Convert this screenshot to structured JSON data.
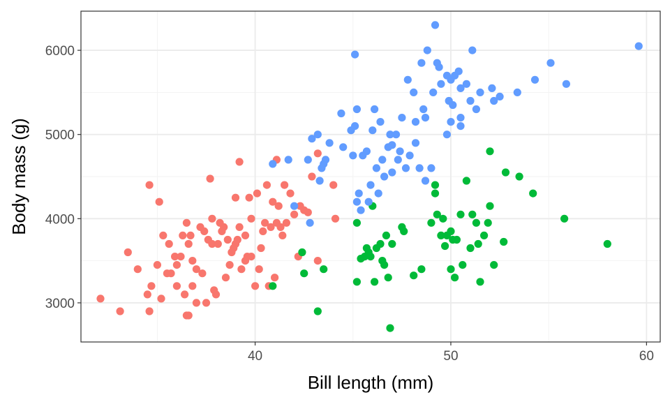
{
  "chart_data": {
    "type": "scatter",
    "xlabel": "Bill length (mm)",
    "ylabel": "Body mass (g)",
    "xlim": [
      31.1,
      60.7
    ],
    "ylim": [
      2535,
      6465
    ],
    "x_ticks": [
      40,
      50,
      60
    ],
    "x_minor_ticks": [
      35,
      45,
      55
    ],
    "y_ticks": [
      3000,
      4000,
      5000,
      6000
    ],
    "y_minor_ticks": [
      3500,
      4500,
      5500
    ],
    "grid": true,
    "legend": "none",
    "series": [
      {
        "color": "#F8766D",
        "points": [
          [
            32.1,
            3050
          ],
          [
            33.1,
            2900
          ],
          [
            33.5,
            3600
          ],
          [
            34.0,
            3400
          ],
          [
            34.5,
            3100
          ],
          [
            34.6,
            2900
          ],
          [
            34.6,
            4400
          ],
          [
            34.7,
            3200
          ],
          [
            35.0,
            3450
          ],
          [
            35.1,
            4200
          ],
          [
            35.2,
            3050
          ],
          [
            35.3,
            3800
          ],
          [
            35.5,
            3350
          ],
          [
            35.6,
            3700
          ],
          [
            35.7,
            3350
          ],
          [
            35.9,
            3550
          ],
          [
            36.0,
            3200
          ],
          [
            36.0,
            3450
          ],
          [
            36.2,
            3550
          ],
          [
            36.3,
            3800
          ],
          [
            36.4,
            3100
          ],
          [
            36.5,
            2850
          ],
          [
            36.6,
            3700
          ],
          [
            36.6,
            2850
          ],
          [
            36.7,
            3800
          ],
          [
            36.8,
            3500
          ],
          [
            37.0,
            3400
          ],
          [
            37.2,
            3900
          ],
          [
            37.3,
            3350
          ],
          [
            37.5,
            3000
          ],
          [
            37.6,
            3750
          ],
          [
            37.7,
            4475
          ],
          [
            37.8,
            3700
          ],
          [
            37.8,
            4000
          ],
          [
            37.9,
            3150
          ],
          [
            38.1,
            3700
          ],
          [
            38.2,
            3950
          ],
          [
            38.3,
            3850
          ],
          [
            38.5,
            3300
          ],
          [
            38.6,
            3750
          ],
          [
            38.7,
            3450
          ],
          [
            38.8,
            3600
          ],
          [
            38.9,
            3650
          ],
          [
            39.0,
            3700
          ],
          [
            39.0,
            4250
          ],
          [
            39.1,
            3750
          ],
          [
            39.2,
            4675
          ],
          [
            39.2,
            3900
          ],
          [
            39.3,
            3400
          ],
          [
            39.5,
            3800
          ],
          [
            39.6,
            3550
          ],
          [
            39.7,
            4250
          ],
          [
            39.8,
            4000
          ],
          [
            40.0,
            3200
          ],
          [
            40.2,
            3400
          ],
          [
            40.3,
            3650
          ],
          [
            40.5,
            3950
          ],
          [
            40.6,
            4400
          ],
          [
            40.8,
            3900
          ],
          [
            40.9,
            4200
          ],
          [
            41.0,
            3300
          ],
          [
            41.1,
            3950
          ],
          [
            41.1,
            4700
          ],
          [
            41.3,
            3900
          ],
          [
            41.4,
            3800
          ],
          [
            41.5,
            4400
          ],
          [
            41.6,
            3950
          ],
          [
            41.8,
            4300
          ],
          [
            42.0,
            4050
          ],
          [
            42.2,
            3550
          ],
          [
            42.3,
            4150
          ],
          [
            42.5,
            4100
          ],
          [
            42.7,
            4075
          ],
          [
            42.9,
            4500
          ],
          [
            43.2,
            4775
          ],
          [
            43.2,
            3500
          ],
          [
            44.1,
            4000
          ],
          [
            44.0,
            4400
          ],
          [
            36.5,
            3950
          ],
          [
            37.0,
            3000
          ],
          [
            38.0,
            3100
          ],
          [
            39.5,
            3500
          ],
          [
            40.1,
            4300
          ],
          [
            40.7,
            3200
          ],
          [
            36.8,
            3200
          ],
          [
            37.4,
            3850
          ],
          [
            38.4,
            3900
          ],
          [
            39.8,
            3550
          ],
          [
            40.4,
            3850
          ],
          [
            41.2,
            4150
          ]
        ]
      },
      {
        "color": "#00BA38",
        "points": [
          [
            40.9,
            3200
          ],
          [
            42.4,
            3600
          ],
          [
            42.5,
            3350
          ],
          [
            43.2,
            2900
          ],
          [
            43.5,
            3400
          ],
          [
            45.2,
            3250
          ],
          [
            45.2,
            3950
          ],
          [
            45.4,
            3525
          ],
          [
            45.6,
            3550
          ],
          [
            45.7,
            3650
          ],
          [
            45.9,
            3550
          ],
          [
            46.0,
            4150
          ],
          [
            46.1,
            3250
          ],
          [
            46.2,
            3650
          ],
          [
            46.4,
            3700
          ],
          [
            46.5,
            3500
          ],
          [
            46.6,
            3450
          ],
          [
            46.8,
            3300
          ],
          [
            46.9,
            2700
          ],
          [
            47.0,
            3700
          ],
          [
            47.5,
            3900
          ],
          [
            47.6,
            3850
          ],
          [
            48.1,
            3325
          ],
          [
            48.5,
            3400
          ],
          [
            49.0,
            3950
          ],
          [
            49.2,
            4400
          ],
          [
            49.3,
            4050
          ],
          [
            49.5,
            3800
          ],
          [
            49.7,
            3675
          ],
          [
            49.8,
            3800
          ],
          [
            50.0,
            3400
          ],
          [
            50.1,
            3750
          ],
          [
            50.2,
            3300
          ],
          [
            50.3,
            3750
          ],
          [
            50.5,
            4050
          ],
          [
            50.6,
            3450
          ],
          [
            50.8,
            4450
          ],
          [
            51.0,
            3650
          ],
          [
            51.3,
            3950
          ],
          [
            51.4,
            3700
          ],
          [
            51.5,
            3250
          ],
          [
            51.9,
            3950
          ],
          [
            52.0,
            4800
          ],
          [
            52.2,
            3450
          ],
          [
            52.7,
            3725
          ],
          [
            52.8,
            4550
          ],
          [
            53.5,
            4500
          ],
          [
            54.2,
            4300
          ],
          [
            55.8,
            4000
          ],
          [
            58.0,
            3700
          ],
          [
            45.8,
            3600
          ],
          [
            46.7,
            3800
          ],
          [
            49.6,
            4000
          ],
          [
            50.0,
            3850
          ],
          [
            51.1,
            4050
          ],
          [
            51.7,
            3800
          ],
          [
            52.0,
            4150
          ],
          [
            49.2,
            4300
          ]
        ]
      },
      {
        "color": "#619CFF",
        "points": [
          [
            40.9,
            4650
          ],
          [
            41.7,
            4700
          ],
          [
            42.0,
            4150
          ],
          [
            42.8,
            3950
          ],
          [
            42.7,
            4700
          ],
          [
            42.9,
            4950
          ],
          [
            43.2,
            5000
          ],
          [
            43.3,
            4450
          ],
          [
            43.4,
            4600
          ],
          [
            43.5,
            4650
          ],
          [
            43.6,
            4700
          ],
          [
            43.8,
            4900
          ],
          [
            44.4,
            5250
          ],
          [
            44.5,
            4850
          ],
          [
            45.0,
            4750
          ],
          [
            45.1,
            5100
          ],
          [
            45.1,
            5950
          ],
          [
            45.2,
            5300
          ],
          [
            45.2,
            4200
          ],
          [
            45.3,
            4300
          ],
          [
            45.5,
            4750
          ],
          [
            45.7,
            4800
          ],
          [
            45.8,
            4200
          ],
          [
            46.1,
            5300
          ],
          [
            46.2,
            4600
          ],
          [
            46.4,
            5150
          ],
          [
            46.5,
            4700
          ],
          [
            46.8,
            4850
          ],
          [
            46.9,
            5000
          ],
          [
            47.0,
            4875
          ],
          [
            47.2,
            5000
          ],
          [
            47.3,
            4700
          ],
          [
            47.5,
            5200
          ],
          [
            47.7,
            4600
          ],
          [
            47.8,
            5650
          ],
          [
            48.1,
            5500
          ],
          [
            48.2,
            4900
          ],
          [
            48.4,
            4600
          ],
          [
            48.5,
            5850
          ],
          [
            48.6,
            5300
          ],
          [
            48.7,
            5200
          ],
          [
            48.8,
            6000
          ],
          [
            49.1,
            5500
          ],
          [
            49.2,
            6300
          ],
          [
            49.3,
            5850
          ],
          [
            49.4,
            5800
          ],
          [
            49.5,
            5600
          ],
          [
            49.8,
            5700
          ],
          [
            49.9,
            5400
          ],
          [
            50.0,
            5650
          ],
          [
            50.1,
            5350
          ],
          [
            50.2,
            5700
          ],
          [
            50.4,
            5750
          ],
          [
            50.5,
            5550
          ],
          [
            50.8,
            5600
          ],
          [
            51.1,
            6000
          ],
          [
            51.3,
            5300
          ],
          [
            51.5,
            5500
          ],
          [
            52.1,
            5550
          ],
          [
            52.2,
            5400
          ],
          [
            52.5,
            5450
          ],
          [
            53.4,
            5500
          ],
          [
            54.3,
            5650
          ],
          [
            55.1,
            5850
          ],
          [
            55.9,
            5600
          ],
          [
            59.6,
            6050
          ],
          [
            45.9,
            4400
          ],
          [
            46.3,
            4300
          ],
          [
            47.0,
            4550
          ],
          [
            47.4,
            4800
          ],
          [
            48.7,
            4450
          ],
          [
            49.0,
            4600
          ],
          [
            49.8,
            5000
          ],
          [
            50.5,
            5200
          ],
          [
            46.6,
            4500
          ],
          [
            47.9,
            4750
          ],
          [
            45.4,
            4100
          ],
          [
            44.9,
            5050
          ],
          [
            46.0,
            5050
          ],
          [
            50.0,
            5150
          ],
          [
            50.5,
            5100
          ],
          [
            51.0,
            5400
          ],
          [
            48.2,
            5150
          ]
        ]
      }
    ]
  }
}
